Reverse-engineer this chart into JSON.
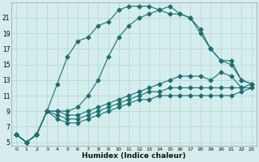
{
  "xlabel": "Humidex (Indice chaleur)",
  "x": [
    0,
    1,
    2,
    3,
    4,
    5,
    6,
    7,
    8,
    9,
    10,
    11,
    12,
    13,
    14,
    15,
    16,
    17,
    18,
    19,
    20,
    21,
    22,
    23
  ],
  "line_max_marker": [
    6,
    5,
    6,
    9,
    12.5,
    16,
    18,
    18.5,
    20,
    20.5,
    22,
    22.5,
    22.5,
    22.5,
    22,
    22.5,
    21.5,
    21,
    19,
    17,
    15.5,
    15,
    13,
    12.5
  ],
  "line_main": [
    6,
    5,
    6,
    9,
    9,
    9,
    9.5,
    11,
    13,
    16,
    18.5,
    20,
    21,
    21.5,
    22,
    21.5,
    21.5,
    21,
    19.5,
    17,
    15.5,
    15.5,
    13,
    12.5
  ],
  "line_mid": [
    6,
    5,
    6,
    9,
    9,
    8.5,
    8.5,
    9,
    9.5,
    10,
    10.5,
    11,
    11.5,
    12,
    12.5,
    13,
    13.5,
    13.5,
    13.5,
    13,
    14,
    13.5,
    12,
    12.5
  ],
  "line_low": [
    6,
    5,
    6,
    9,
    8.5,
    8,
    8,
    8.5,
    9,
    9.5,
    10,
    10.5,
    11,
    11.5,
    11.5,
    12,
    12,
    12,
    12,
    12,
    12,
    12,
    12,
    12
  ],
  "line_lowest": [
    6,
    5,
    6,
    9,
    8,
    7.5,
    7.5,
    8,
    8.5,
    9,
    9.5,
    10,
    10.5,
    10.5,
    11,
    11,
    11,
    11,
    11,
    11,
    11,
    11,
    11.5,
    12
  ],
  "bg_color": "#d5eeed",
  "grid_color": "#b8d8d5",
  "line_color": "#1a7070",
  "markersize": 2.5,
  "ylim": [
    4.5,
    23
  ],
  "yticks": [
    5,
    7,
    9,
    11,
    13,
    15,
    17,
    19,
    21
  ],
  "xticks": [
    0,
    1,
    2,
    3,
    4,
    5,
    6,
    7,
    8,
    9,
    10,
    11,
    12,
    13,
    14,
    15,
    16,
    17,
    18,
    19,
    20,
    21,
    22,
    23
  ],
  "figsize": [
    3.2,
    2.0
  ],
  "dpi": 100
}
